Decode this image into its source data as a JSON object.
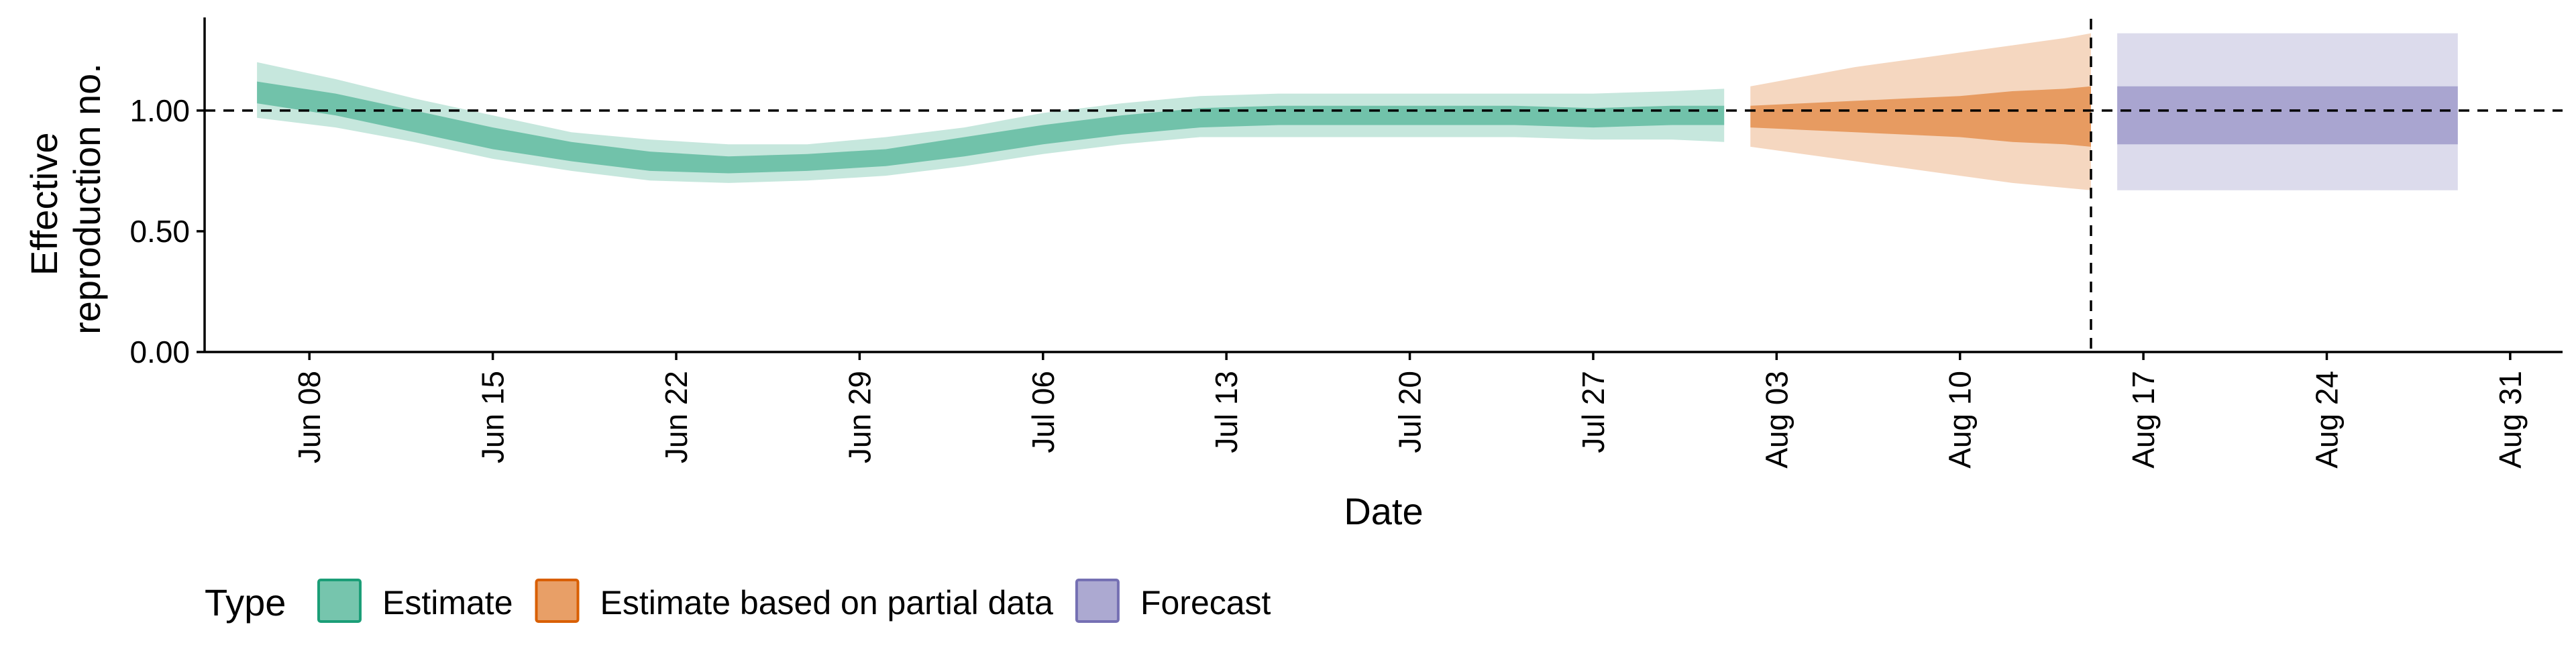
{
  "chart_data": {
    "type": "area",
    "xlabel": "Date",
    "ylabel": [
      "Effective",
      "reproduction no."
    ],
    "ylim": [
      0,
      1.38
    ],
    "yticks": [
      0,
      0.5,
      1.0
    ],
    "ytick_labels": [
      "0.00",
      "0.50",
      "1.00"
    ],
    "xlim": [
      "2021-06-04",
      "2021-09-02"
    ],
    "xticks": [
      "2021-06-08",
      "2021-06-15",
      "2021-06-22",
      "2021-06-29",
      "2021-07-06",
      "2021-07-13",
      "2021-07-20",
      "2021-07-27",
      "2021-08-03",
      "2021-08-10",
      "2021-08-17",
      "2021-08-24",
      "2021-08-31"
    ],
    "xtick_labels": [
      "Jun 08",
      "Jun 15",
      "Jun 22",
      "Jun 29",
      "Jul 06",
      "Jul 13",
      "Jul 20",
      "Jul 27",
      "Aug 03",
      "Aug 10",
      "Aug 17",
      "Aug 24",
      "Aug 31"
    ],
    "reference_line_y": 1.0,
    "vertical_line_x": "2021-08-15",
    "grid": false,
    "legend": {
      "title": "Type",
      "position": "bottom-left",
      "entries": [
        "Estimate",
        "Estimate based on partial data",
        "Forecast"
      ]
    },
    "series": [
      {
        "name": "Estimate",
        "color": "#1b9e77",
        "x": [
          "2021-06-06",
          "2021-06-09",
          "2021-06-12",
          "2021-06-15",
          "2021-06-18",
          "2021-06-21",
          "2021-06-24",
          "2021-06-27",
          "2021-06-30",
          "2021-07-03",
          "2021-07-06",
          "2021-07-09",
          "2021-07-12",
          "2021-07-15",
          "2021-07-18",
          "2021-07-21",
          "2021-07-24",
          "2021-07-27",
          "2021-07-30",
          "2021-08-01"
        ],
        "median": [
          1.08,
          1.03,
          0.96,
          0.89,
          0.83,
          0.79,
          0.77,
          0.78,
          0.8,
          0.85,
          0.9,
          0.94,
          0.97,
          0.98,
          0.98,
          0.98,
          0.98,
          0.97,
          0.98,
          0.98
        ],
        "lower_50": [
          1.03,
          0.98,
          0.91,
          0.84,
          0.79,
          0.75,
          0.74,
          0.75,
          0.77,
          0.81,
          0.86,
          0.9,
          0.93,
          0.94,
          0.94,
          0.94,
          0.94,
          0.93,
          0.94,
          0.94
        ],
        "upper_50": [
          1.12,
          1.07,
          1.0,
          0.93,
          0.87,
          0.83,
          0.81,
          0.82,
          0.84,
          0.89,
          0.94,
          0.98,
          1.01,
          1.02,
          1.02,
          1.02,
          1.02,
          1.01,
          1.02,
          1.02
        ],
        "lower_90": [
          0.97,
          0.93,
          0.87,
          0.8,
          0.75,
          0.71,
          0.7,
          0.71,
          0.73,
          0.77,
          0.82,
          0.86,
          0.89,
          0.89,
          0.89,
          0.89,
          0.89,
          0.88,
          0.88,
          0.87
        ],
        "upper_90": [
          1.2,
          1.13,
          1.05,
          0.98,
          0.91,
          0.88,
          0.86,
          0.86,
          0.89,
          0.93,
          0.99,
          1.03,
          1.06,
          1.07,
          1.07,
          1.07,
          1.07,
          1.07,
          1.08,
          1.09
        ]
      },
      {
        "name": "Estimate based on partial data",
        "color": "#d95f02",
        "x": [
          "2021-08-02",
          "2021-08-04",
          "2021-08-06",
          "2021-08-08",
          "2021-08-10",
          "2021-08-12",
          "2021-08-14",
          "2021-08-15"
        ],
        "median": [
          0.98,
          0.98,
          0.98,
          0.97,
          0.97,
          0.97,
          0.97,
          0.97
        ],
        "lower_50": [
          0.93,
          0.92,
          0.91,
          0.9,
          0.89,
          0.87,
          0.86,
          0.85
        ],
        "upper_50": [
          1.02,
          1.03,
          1.04,
          1.05,
          1.06,
          1.08,
          1.09,
          1.1
        ],
        "lower_90": [
          0.85,
          0.82,
          0.79,
          0.76,
          0.73,
          0.7,
          0.68,
          0.67
        ],
        "upper_90": [
          1.1,
          1.14,
          1.18,
          1.21,
          1.24,
          1.27,
          1.3,
          1.32
        ]
      },
      {
        "name": "Forecast",
        "color": "#7570b3",
        "x": [
          "2021-08-16",
          "2021-08-29"
        ],
        "median": [
          0.97,
          0.97
        ],
        "lower_50": [
          0.86,
          0.86
        ],
        "upper_50": [
          1.1,
          1.1
        ],
        "lower_90": [
          0.67,
          0.67
        ],
        "upper_90": [
          1.32,
          1.32
        ]
      }
    ]
  }
}
